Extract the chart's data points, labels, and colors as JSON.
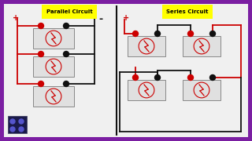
{
  "bg_outer": "#7B1FA2",
  "bg_inner": "#f0f0f0",
  "title_parallel": "Parallel Circuit",
  "title_series": "Series Circuit",
  "title_bg": "#ffff00",
  "title_fontsize": 5.0,
  "red": "#cc0000",
  "black": "#111111",
  "wire_lw": 1.3,
  "symbol_color": "#cc0000",
  "batt_fill": "#d8d8d8",
  "batt_edge": "#888888",
  "term_size": 0.009
}
